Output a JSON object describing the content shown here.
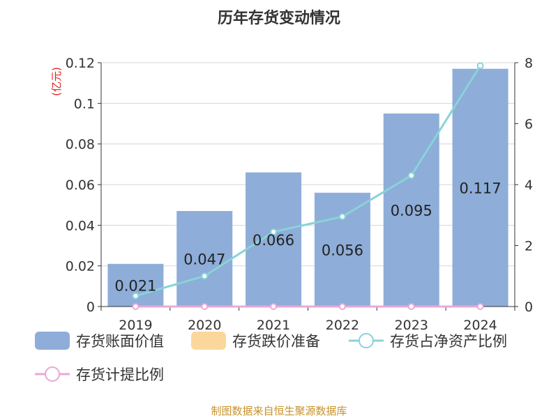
{
  "title": "历年存货变动情况",
  "source": "制图数据来自恒生聚源数据库",
  "colors": {
    "bar_book": "#8eadd8",
    "bar_reserve": "#fcd79b",
    "line_net": "#88d3d8",
    "line_provision": "#e8a8d8"
  },
  "chart_data": {
    "type": "bar",
    "categories": [
      "2019",
      "2020",
      "2021",
      "2022",
      "2023",
      "2024"
    ],
    "y_left": {
      "unit": "(亿元)",
      "ylim": [
        0,
        0.12
      ],
      "ticks": [
        "0",
        "0.02",
        "0.04",
        "0.06",
        "0.08",
        "0.1",
        "0.12"
      ]
    },
    "y_right": {
      "ylim": [
        0,
        8
      ],
      "ticks": [
        "0",
        "2",
        "4",
        "6",
        "8"
      ]
    },
    "series": [
      {
        "name": "存货账面价值",
        "kind": "bar",
        "axis": "left",
        "values": [
          0.021,
          0.047,
          0.066,
          0.056,
          0.095,
          0.117
        ],
        "labels": [
          "0.021",
          "0.047",
          "0.066",
          "0.056",
          "0.095",
          "0.117"
        ]
      },
      {
        "name": "存货跌价准备",
        "kind": "bar",
        "axis": "left",
        "values": [
          0,
          0,
          0,
          0,
          0,
          0
        ]
      },
      {
        "name": "存货占净资产比例",
        "kind": "line",
        "axis": "right",
        "values": [
          0.35,
          1.0,
          2.45,
          2.95,
          4.3,
          7.9
        ]
      },
      {
        "name": "存货计提比例",
        "kind": "line",
        "axis": "right",
        "values": [
          0,
          0,
          0,
          0,
          0,
          0
        ]
      }
    ],
    "grid": true,
    "legend": "bottom"
  }
}
